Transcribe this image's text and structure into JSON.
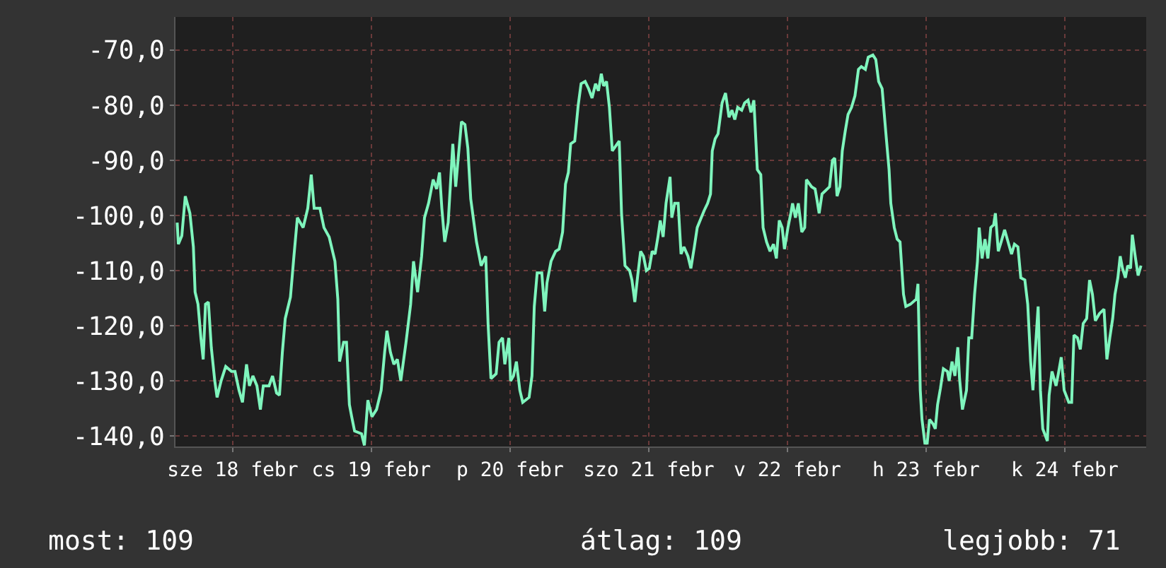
{
  "chart_data": {
    "type": "line",
    "x": [
      "--02-18T02:24",
      "--02-18T02:36",
      "--02-18T03:12",
      "--02-18T03:48",
      "--02-18T04:36",
      "--02-18T05:12",
      "--02-18T05:30",
      "--02-18T06:00",
      "--02-18T06:30",
      "--02-18T06:54",
      "--02-18T07:18",
      "--02-18T07:48",
      "--02-18T08:18",
      "--02-18T08:54",
      "--02-18T09:18",
      "--02-18T10:00",
      "--02-18T10:48",
      "--02-18T11:48",
      "--02-18T12:24",
      "--02-18T13:06",
      "--02-18T13:42",
      "--02-18T14:24",
      "--02-18T14:54",
      "--02-18T15:30",
      "--02-18T16:12",
      "--02-18T16:48",
      "--02-18T17:18",
      "--02-18T18:18",
      "--02-18T18:54",
      "--02-18T19:36",
      "--02-18T20:06",
      "--02-18T20:36",
      "--02-18T21:06",
      "--02-18T22:00",
      "--02-18T22:36",
      "--02-18T23:12",
      "--02-19T00:12",
      "--02-19T01:00",
      "--02-19T01:36",
      "--02-19T02:06",
      "--02-19T03:06",
      "--02-19T03:48",
      "--02-19T04:42",
      "--02-19T05:42",
      "--02-19T06:12",
      "--02-19T06:30",
      "--02-19T07:12",
      "--02-19T07:42",
      "--02-19T08:12",
      "--02-19T08:36",
      "--02-19T09:06",
      "--02-19T10:18",
      "--02-19T10:48",
      "--02-19T11:24",
      "--02-19T12:06",
      "--02-19T12:54",
      "--02-19T13:42",
      "--02-19T14:18",
      "--02-19T14:42",
      "--02-19T15:18",
      "--02-19T15:54",
      "--02-19T16:30",
      "--02-19T17:06",
      "--02-19T18:00",
      "--02-19T18:48",
      "--02-19T19:18",
      "--02-19T20:00",
      "--02-19T20:42",
      "--02-19T21:12",
      "--02-19T21:54",
      "--02-19T22:42",
      "--02-19T23:18",
      "--02-19T23:48",
      "--02-20T00:12",
      "--02-20T00:42",
      "--02-20T01:18",
      "--02-20T02:06",
      "--02-20T02:36",
      "--02-20T03:00",
      "--02-20T03:36",
      "--02-20T04:12",
      "--02-20T04:42",
      "--02-20T05:12",
      "--02-20T06:12",
      "--02-20T07:00",
      "--02-20T07:48",
      "--02-20T08:12",
      "--02-20T08:42",
      "--02-20T09:36",
      "--02-20T10:06",
      "--02-20T10:42",
      "--02-20T11:06",
      "--02-20T11:48",
      "--02-20T12:06",
      "--02-20T12:36",
      "--02-20T13:06",
      "--02-20T13:42",
      "--02-20T14:12",
      "--02-20T15:18",
      "--02-20T15:48",
      "--02-20T16:12",
      "--02-20T16:42",
      "--02-20T17:30",
      "--02-20T18:00",
      "--02-20T18:24",
      "--02-20T19:06",
      "--02-20T19:54",
      "--02-20T20:30",
      "--02-20T21:06",
      "--02-20T21:36",
      "--02-20T22:06",
      "--02-20T22:30",
      "--02-20T23:12",
      "--02-20T23:48",
      "--02-21T00:18",
      "--02-21T01:00",
      "--02-21T01:36",
      "--02-21T02:12",
      "--02-21T02:48",
      "--02-21T03:18",
      "--02-21T03:48",
      "--02-21T04:12",
      "--02-21T04:42",
      "--02-21T05:12",
      "--02-21T05:42",
      "--02-21T06:18",
      "--02-21T06:54",
      "--02-21T07:18",
      "--02-21T07:54",
      "--02-21T08:42",
      "--02-21T09:06",
      "--02-21T09:36",
      "--02-21T10:06",
      "--02-21T10:36",
      "--02-21T11:06",
      "--02-21T11:36",
      "--02-21T12:06",
      "--02-21T12:36",
      "--02-21T13:06",
      "--02-21T13:36",
      "--02-21T14:00",
      "--02-21T14:30",
      "--02-21T15:00",
      "--02-21T15:42",
      "--02-21T16:00",
      "--02-21T16:30",
      "--02-21T17:06",
      "--02-21T17:36",
      "--02-21T18:06",
      "--02-21T18:48",
      "--02-21T19:18",
      "--02-21T19:54",
      "--02-21T20:24",
      "--02-21T21:06",
      "--02-21T21:36",
      "--02-21T22:12",
      "--02-21T22:42",
      "--02-21T23:00",
      "--02-21T23:30",
      "--02-22T00:00",
      "--02-22T00:42",
      "--02-22T01:18",
      "--02-22T01:54",
      "--02-22T02:24",
      "--02-22T02:54",
      "--02-22T03:24",
      "--02-22T04:06",
      "--02-22T04:36",
      "--02-22T05:12",
      "--02-22T05:42",
      "--02-22T06:12",
      "--02-22T06:48",
      "--02-22T07:24",
      "--02-22T07:48",
      "--02-22T08:24",
      "--02-22T09:00",
      "--02-22T09:36",
      "--02-22T10:06",
      "--02-22T10:36",
      "--02-22T11:06",
      "--02-22T11:30",
      "--02-22T12:06",
      "--02-22T12:36",
      "--02-22T12:54",
      "--02-22T13:24",
      "--02-22T13:54",
      "--02-22T14:30",
      "--02-22T15:00",
      "--02-22T15:18",
      "--02-22T16:12",
      "--02-22T16:48",
      "--02-22T17:06",
      "--02-22T17:30",
      "--02-22T18:00",
      "--02-22T19:18",
      "--02-22T19:48",
      "--02-22T20:12",
      "--02-22T20:36",
      "--02-22T21:06",
      "--02-22T21:30",
      "--02-22T22:00",
      "--02-22T22:30",
      "--02-22T23:06",
      "--02-22T23:42",
      "--02-23T00:18",
      "--02-23T00:48",
      "--02-23T01:30",
      "--02-23T02:00",
      "--02-23T02:48",
      "--02-23T03:18",
      "--02-23T03:48",
      "--02-23T04:24",
      "--02-23T05:06",
      "--02-23T05:36",
      "--02-23T05:54",
      "--02-23T06:30",
      "--02-23T07:00",
      "--02-23T07:30",
      "--02-23T08:06",
      "--02-23T08:30",
      "--02-23T09:18",
      "--02-23T10:18",
      "--02-23T10:36",
      "--02-23T11:00",
      "--02-23T11:18",
      "--02-23T11:48",
      "--02-23T12:12",
      "--02-23T12:36",
      "--02-23T13:12",
      "--02-23T13:36",
      "--02-23T14:00",
      "--02-23T14:30",
      "--02-23T15:00",
      "--02-23T15:42",
      "--02-23T16:00",
      "--02-23T16:30",
      "--02-23T17:00",
      "--02-23T17:30",
      "--02-23T17:48",
      "--02-23T18:18",
      "--02-23T19:00",
      "--02-23T19:24",
      "--02-23T19:54",
      "--02-23T20:24",
      "--02-23T20:54",
      "--02-23T21:12",
      "--02-23T21:42",
      "--02-23T22:12",
      "--02-23T22:42",
      "--02-23T23:12",
      "--02-23T23:42",
      "--02-24T00:00",
      "--02-24T00:30",
      "--02-24T01:00",
      "--02-24T01:36",
      "--02-24T02:18",
      "--02-24T02:48",
      "--02-24T03:18",
      "--02-24T03:54",
      "--02-24T04:24",
      "--02-24T05:06",
      "--02-24T05:36",
      "--02-24T06:06",
      "--02-24T06:30",
      "--02-24T07:00",
      "--02-24T07:24",
      "--02-24T07:48",
      "--02-24T08:12",
      "--02-24T09:00",
      "--02-24T09:18",
      "--02-24T09:48",
      "--02-24T10:30",
      "--02-24T10:54",
      "--02-24T11:24",
      "--02-24T11:54",
      "--02-24T12:42",
      "--02-24T13:12",
      "--02-24T13:36",
      "--02-24T14:12",
      "--02-24T14:42",
      "--02-24T15:12",
      "--02-24T15:48",
      "--02-24T16:18",
      "--02-24T16:48",
      "--02-24T17:18",
      "--02-24T18:00",
      "--02-24T18:48",
      "--02-24T19:18",
      "--02-24T19:48",
      "--02-24T20:18",
      "--02-24T20:42",
      "--02-24T21:12",
      "--02-24T21:36",
      "--02-24T22:00",
      "--02-24T22:30",
      "--02-24T22:54",
      "--02-24T23:24",
      "--02-24T23:42",
      "--02-25T00:12",
      "--02-25T00:42",
      "--02-25T01:12"
    ],
    "series": [
      {
        "color": "#7ff5bd",
        "values": [
          -101.3,
          -105.2,
          -103.7,
          -96.5,
          -99.6,
          -105.7,
          -113.9,
          -116.1,
          -122.2,
          -126.1,
          -116.1,
          -115.7,
          -123.9,
          -130.0,
          -133.0,
          -130.0,
          -127.4,
          -128.3,
          -128.3,
          -131.7,
          -133.9,
          -127.0,
          -130.9,
          -129.1,
          -130.9,
          -135.2,
          -130.9,
          -130.9,
          -129.1,
          -132.2,
          -132.6,
          -124.8,
          -118.7,
          -114.8,
          -107.4,
          -100.4,
          -102.2,
          -98.7,
          -92.6,
          -98.7,
          -98.7,
          -102.2,
          -103.9,
          -108.3,
          -115.2,
          -126.5,
          -123.0,
          -123.0,
          -134.3,
          -136.5,
          -139.1,
          -139.6,
          -141.7,
          -133.5,
          -136.5,
          -135.2,
          -131.7,
          -124.8,
          -120.9,
          -124.8,
          -127.0,
          -126.1,
          -130.0,
          -123.0,
          -116.1,
          -108.3,
          -113.9,
          -107.4,
          -100.4,
          -97.8,
          -93.5,
          -95.2,
          -92.2,
          -98.7,
          -104.8,
          -101.3,
          -87.0,
          -94.8,
          -90.0,
          -83.0,
          -83.5,
          -87.8,
          -97.0,
          -104.8,
          -109.1,
          -107.4,
          -119.6,
          -129.6,
          -128.7,
          -123.0,
          -122.2,
          -127.0,
          -122.2,
          -130.0,
          -129.1,
          -126.5,
          -131.7,
          -133.9,
          -133.0,
          -129.1,
          -116.5,
          -110.4,
          -110.4,
          -117.4,
          -112.2,
          -108.3,
          -106.5,
          -106.1,
          -103.0,
          -94.3,
          -92.2,
          -87.0,
          -86.5,
          -80.0,
          -76.1,
          -75.7,
          -77.0,
          -78.7,
          -76.1,
          -77.4,
          -74.3,
          -76.5,
          -75.7,
          -80.4,
          -88.3,
          -87.4,
          -86.5,
          -99.6,
          -109.1,
          -110.0,
          -111.7,
          -115.7,
          -110.9,
          -106.5,
          -107.4,
          -110.0,
          -109.6,
          -106.5,
          -107.0,
          -103.9,
          -100.9,
          -103.9,
          -97.8,
          -93.0,
          -100.4,
          -97.8,
          -97.8,
          -107.0,
          -105.7,
          -107.4,
          -109.6,
          -105.7,
          -102.2,
          -100.4,
          -99.1,
          -97.8,
          -96.1,
          -88.3,
          -86.1,
          -85.2,
          -79.6,
          -77.8,
          -82.2,
          -80.9,
          -82.6,
          -80.4,
          -80.9,
          -79.6,
          -79.1,
          -81.3,
          -79.1,
          -91.7,
          -92.6,
          -102.2,
          -104.8,
          -106.5,
          -105.2,
          -107.8,
          -100.9,
          -102.2,
          -106.1,
          -102.2,
          -99.6,
          -97.8,
          -100.4,
          -97.8,
          -103.0,
          -102.2,
          -93.5,
          -94.8,
          -95.2,
          -97.0,
          -99.6,
          -96.1,
          -94.8,
          -90.0,
          -89.6,
          -96.5,
          -94.8,
          -88.3,
          -84.8,
          -81.7,
          -80.4,
          -78.3,
          -73.5,
          -73.0,
          -73.5,
          -71.3,
          -70.9,
          -71.7,
          -75.7,
          -77.0,
          -85.7,
          -91.7,
          -97.8,
          -102.2,
          -104.3,
          -104.8,
          -114.3,
          -116.5,
          -116.1,
          -115.2,
          -112.4,
          -131.7,
          -137.0,
          -141.3,
          -141.3,
          -137.0,
          -137.8,
          -138.7,
          -134.3,
          -131.3,
          -127.8,
          -128.3,
          -130.0,
          -126.5,
          -129.1,
          -123.9,
          -129.6,
          -135.2,
          -131.7,
          -122.2,
          -122.2,
          -114.3,
          -108.3,
          -102.2,
          -107.8,
          -104.3,
          -107.8,
          -102.2,
          -101.7,
          -99.6,
          -106.5,
          -104.8,
          -102.6,
          -105.2,
          -107.0,
          -105.2,
          -105.7,
          -111.3,
          -111.7,
          -116.1,
          -126.5,
          -131.7,
          -123.0,
          -116.5,
          -131.7,
          -138.7,
          -140.9,
          -132.6,
          -128.3,
          -130.9,
          -128.7,
          -125.7,
          -131.7,
          -133.9,
          -133.9,
          -121.7,
          -122.2,
          -124.3,
          -119.6,
          -118.7,
          -111.7,
          -114.3,
          -119.1,
          -117.8,
          -117.0,
          -126.1,
          -122.2,
          -118.7,
          -114.3,
          -111.3,
          -107.4,
          -109.6,
          -111.3,
          -109.1,
          -109.6,
          -103.5,
          -107.4,
          -110.9,
          -109.1
        ]
      }
    ],
    "xlim": [
      "--02-18T02:06",
      "--02-25T02:06"
    ],
    "xticks": [
      {
        "value": "--02-18T12:00",
        "label": "sze 18 febr"
      },
      {
        "value": "--02-19T12:00",
        "label": "cs 19 febr"
      },
      {
        "value": "--02-20T12:00",
        "label": "p 20 febr"
      },
      {
        "value": "--02-21T12:00",
        "label": "szo 21 febr"
      },
      {
        "value": "--02-22T12:00",
        "label": "v 22 febr"
      },
      {
        "value": "--02-23T12:00",
        "label": "h 23 febr"
      },
      {
        "value": "--02-24T12:00",
        "label": "k 24 febr"
      }
    ],
    "ylim": [
      -141.9,
      -64
    ],
    "yticks": [
      {
        "value": -140,
        "label": "-140,0"
      },
      {
        "value": -130,
        "label": "-130,0"
      },
      {
        "value": -120,
        "label": "-120,0"
      },
      {
        "value": -110,
        "label": "-110,0"
      },
      {
        "value": -100,
        "label": "-100,0"
      },
      {
        "value": -90,
        "label": "-90,0"
      },
      {
        "value": -80,
        "label": "-80,0"
      },
      {
        "value": -70,
        "label": "-70,0"
      }
    ],
    "grid": true,
    "marker": "none",
    "line_style": "solid",
    "annotations": [
      "most: 109",
      "átlag: 109",
      "legjobb: 71"
    ]
  }
}
